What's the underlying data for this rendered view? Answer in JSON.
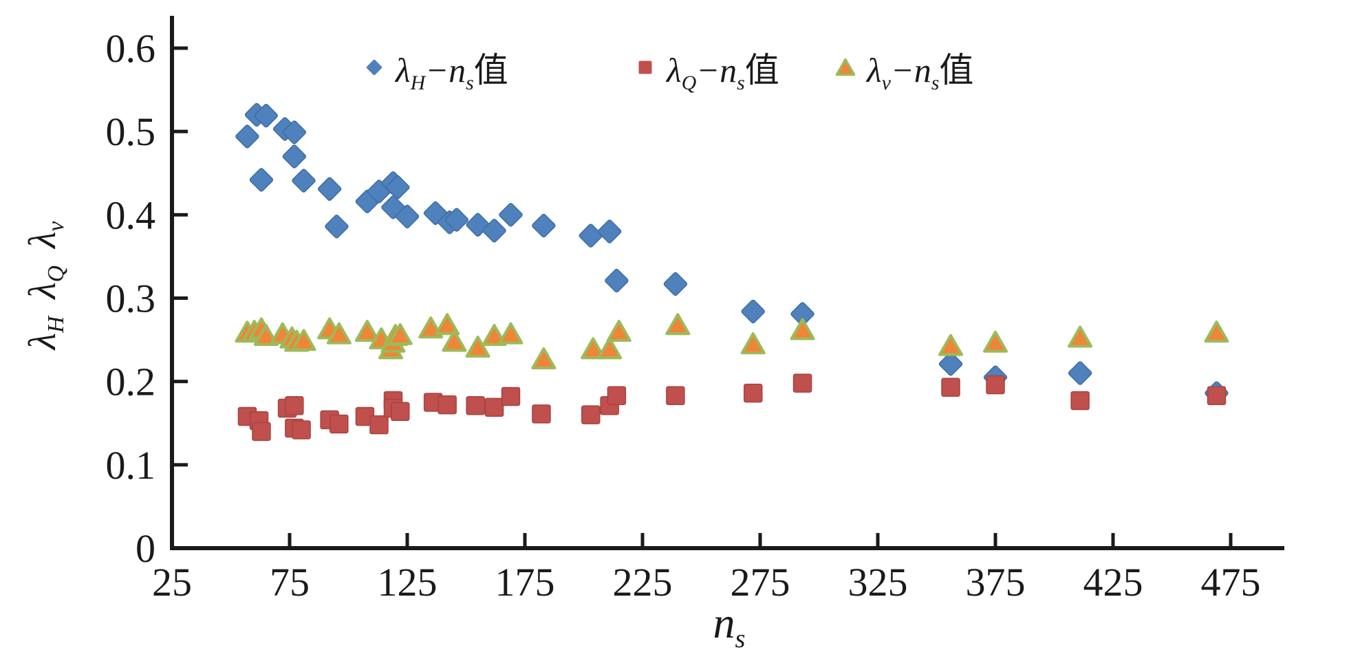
{
  "chart_data": {
    "type": "scatter",
    "title": "",
    "xlabel": {
      "base": "n",
      "sub": "s"
    },
    "ylabel": {
      "parts": [
        {
          "base": "λ",
          "sub": "H"
        },
        {
          "base": "λ",
          "sub": "Q"
        },
        {
          "base": "λ",
          "sub": "v"
        }
      ]
    },
    "xlim": [
      25,
      500
    ],
    "ylim": [
      0,
      0.64
    ],
    "x_ticks": [
      25,
      75,
      125,
      175,
      225,
      275,
      325,
      375,
      425,
      475
    ],
    "y_ticks": [
      0,
      0.1,
      0.2,
      0.3,
      0.4,
      0.5,
      0.6
    ],
    "y_tick_labels": [
      "0",
      "0.1",
      "0.2",
      "0.3",
      "0.4",
      "0.5",
      "0.6"
    ],
    "grid": false,
    "legend_position": "top",
    "axis_color": "#1a1a1a",
    "series": [
      {
        "name": "λH−ns值",
        "label_parts": {
          "sym": "λ",
          "sym_sub": "H",
          "mid": "−n",
          "mid_sub": "s",
          "suffix": "值"
        },
        "marker": "diamond",
        "color": "#4F81BD",
        "edge": "#3D6DA3",
        "points": [
          [
            57,
            0.494
          ],
          [
            61,
            0.52
          ],
          [
            63,
            0.442
          ],
          [
            65,
            0.519
          ],
          [
            73,
            0.503
          ],
          [
            77,
            0.499
          ],
          [
            77,
            0.47
          ],
          [
            81,
            0.441
          ],
          [
            92,
            0.431
          ],
          [
            95,
            0.386
          ],
          [
            108,
            0.416
          ],
          [
            113,
            0.428
          ],
          [
            119,
            0.438
          ],
          [
            119,
            0.409
          ],
          [
            121,
            0.433
          ],
          [
            125,
            0.398
          ],
          [
            137,
            0.402
          ],
          [
            143,
            0.391
          ],
          [
            146,
            0.394
          ],
          [
            155,
            0.388
          ],
          [
            162,
            0.381
          ],
          [
            169,
            0.4
          ],
          [
            183,
            0.387
          ],
          [
            203,
            0.375
          ],
          [
            211,
            0.38
          ],
          [
            214,
            0.321
          ],
          [
            239,
            0.317
          ],
          [
            272,
            0.284
          ],
          [
            293,
            0.281
          ],
          [
            356,
            0.221
          ],
          [
            375,
            0.205
          ],
          [
            411,
            0.21
          ],
          [
            469,
            0.186
          ]
        ]
      },
      {
        "name": "λQ−ns值",
        "label_parts": {
          "sym": "λ",
          "sym_sub": "Q",
          "mid": "−n",
          "mid_sub": "s",
          "suffix": "值"
        },
        "marker": "square",
        "color": "#C0504D",
        "edge": "#A8423F",
        "points": [
          [
            57,
            0.158
          ],
          [
            62,
            0.153
          ],
          [
            63,
            0.14
          ],
          [
            74,
            0.168
          ],
          [
            77,
            0.171
          ],
          [
            77,
            0.144
          ],
          [
            80,
            0.142
          ],
          [
            92,
            0.154
          ],
          [
            96,
            0.149
          ],
          [
            107,
            0.158
          ],
          [
            113,
            0.148
          ],
          [
            119,
            0.177
          ],
          [
            119,
            0.168
          ],
          [
            122,
            0.164
          ],
          [
            136,
            0.175
          ],
          [
            142,
            0.172
          ],
          [
            154,
            0.171
          ],
          [
            162,
            0.169
          ],
          [
            169,
            0.182
          ],
          [
            182,
            0.161
          ],
          [
            203,
            0.16
          ],
          [
            211,
            0.171
          ],
          [
            214,
            0.183
          ],
          [
            239,
            0.183
          ],
          [
            272,
            0.186
          ],
          [
            293,
            0.198
          ],
          [
            356,
            0.193
          ],
          [
            375,
            0.196
          ],
          [
            411,
            0.177
          ],
          [
            469,
            0.183
          ]
        ]
      },
      {
        "name": "λv−ns值",
        "label_parts": {
          "sym": "λ",
          "sym_sub": "v",
          "mid": "−n",
          "mid_sub": "s",
          "suffix": "值"
        },
        "marker": "triangle",
        "color": "#F08438",
        "edge": "#9BBB59",
        "points": [
          [
            57,
            0.259
          ],
          [
            60,
            0.26
          ],
          [
            63,
            0.263
          ],
          [
            65,
            0.255
          ],
          [
            72,
            0.257
          ],
          [
            76,
            0.252
          ],
          [
            78,
            0.248
          ],
          [
            81,
            0.249
          ],
          [
            92,
            0.263
          ],
          [
            96,
            0.257
          ],
          [
            108,
            0.26
          ],
          [
            114,
            0.251
          ],
          [
            118,
            0.239
          ],
          [
            119,
            0.247
          ],
          [
            120,
            0.255
          ],
          [
            122,
            0.256
          ],
          [
            135,
            0.264
          ],
          [
            142,
            0.268
          ],
          [
            145,
            0.248
          ],
          [
            155,
            0.241
          ],
          [
            162,
            0.255
          ],
          [
            169,
            0.257
          ],
          [
            183,
            0.227
          ],
          [
            204,
            0.239
          ],
          [
            211,
            0.239
          ],
          [
            215,
            0.26
          ],
          [
            240,
            0.268
          ],
          [
            272,
            0.245
          ],
          [
            293,
            0.262
          ],
          [
            356,
            0.243
          ],
          [
            375,
            0.247
          ],
          [
            411,
            0.253
          ],
          [
            469,
            0.259
          ]
        ]
      }
    ]
  }
}
